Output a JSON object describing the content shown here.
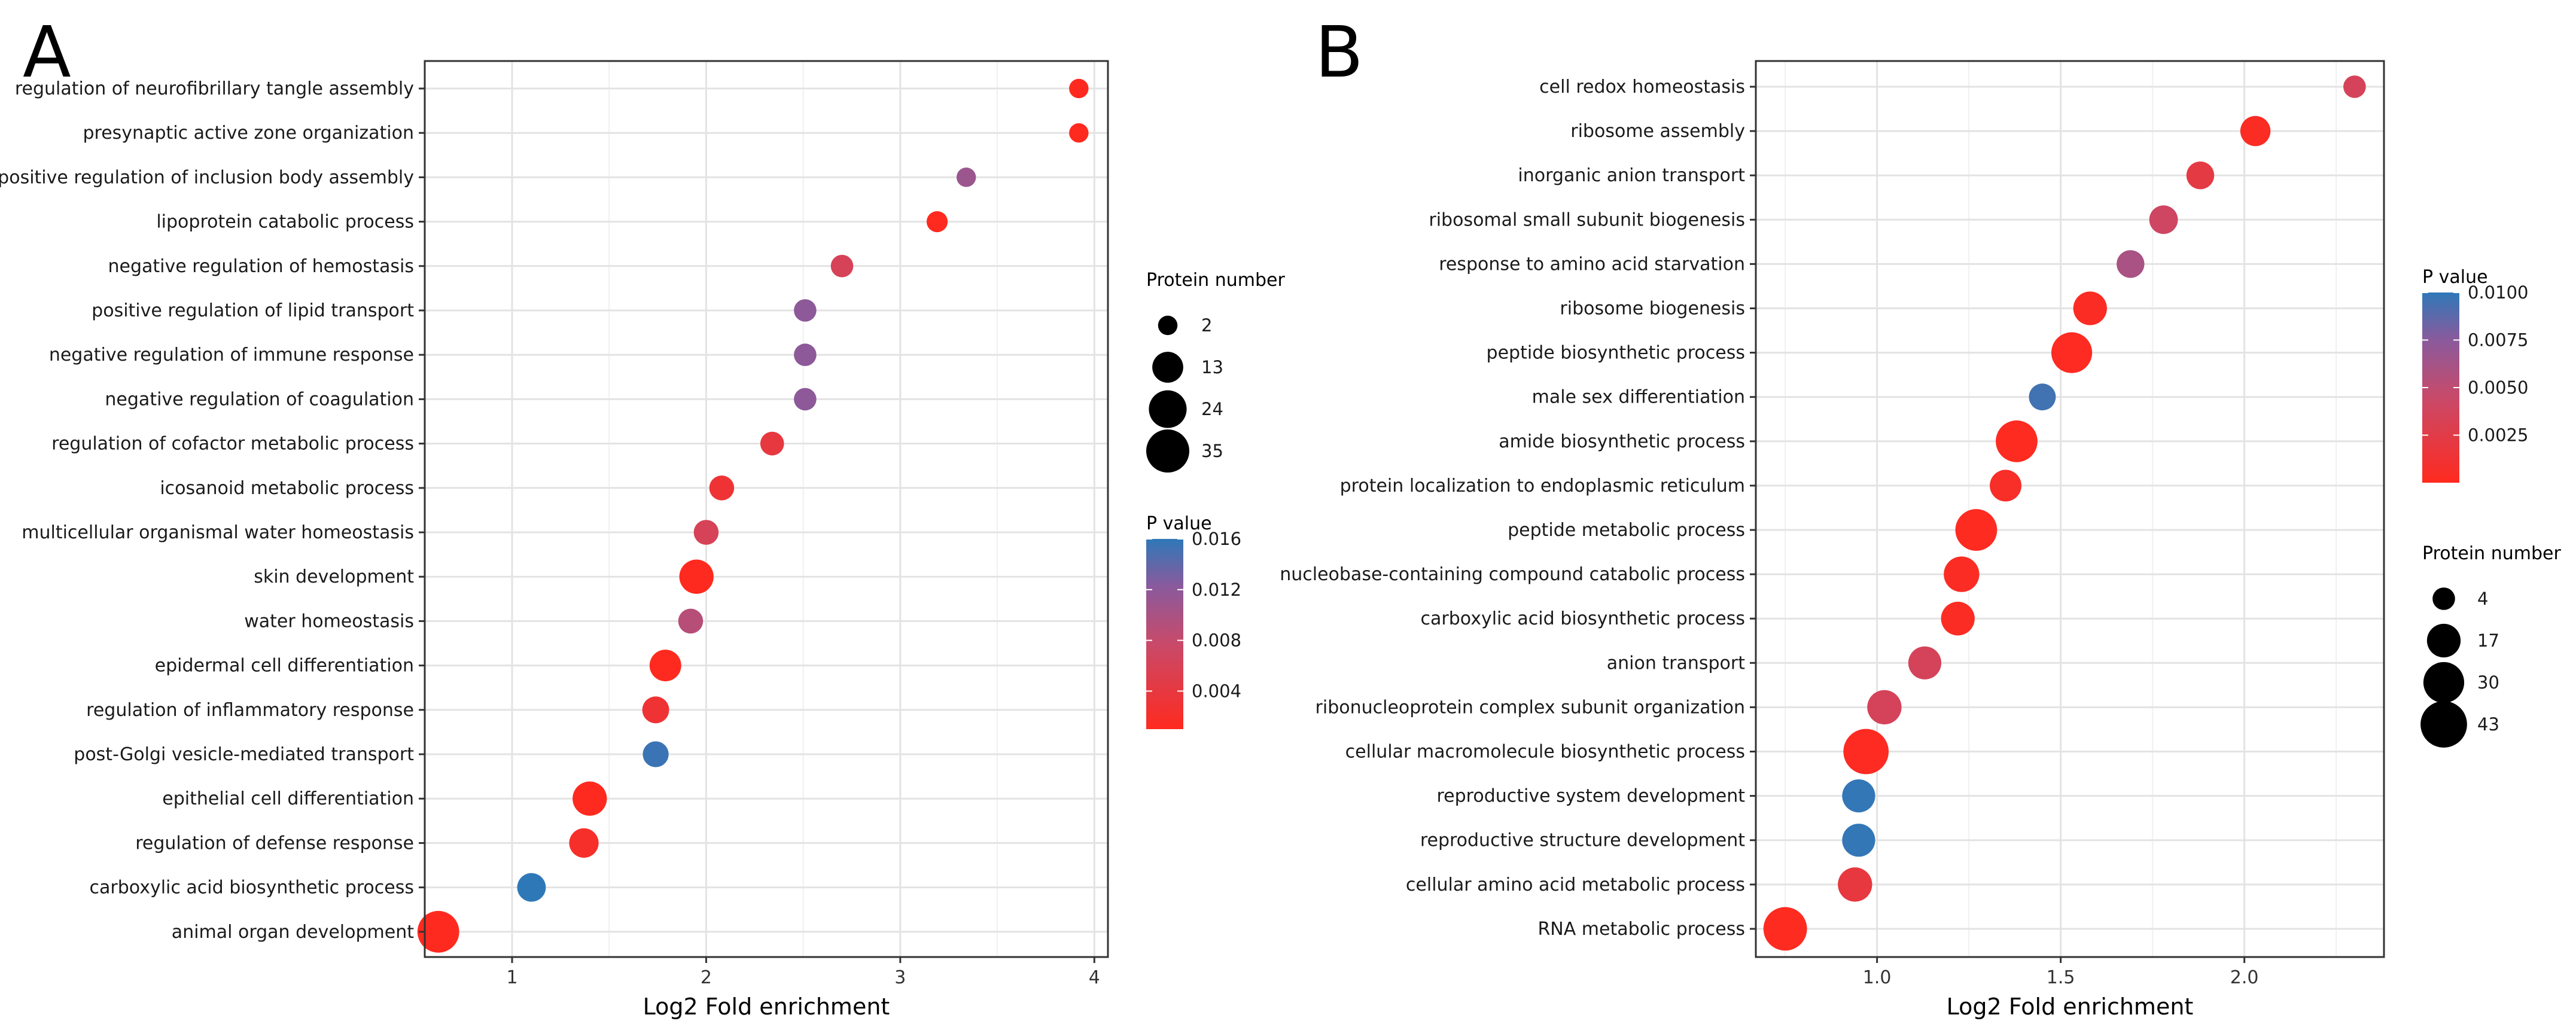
{
  "panels": [
    {
      "label": "A",
      "chart_data": {
        "type": "scatter",
        "xlabel": "Log2 Fold enrichment",
        "xlim": [
          0.55,
          4.07
        ],
        "xticks": [
          1,
          2,
          3,
          4
        ],
        "categories": [
          "regulation of neurofibrillary tangle assembly",
          "presynaptic active zone organization",
          "positive regulation of inclusion body assembly",
          "lipoprotein catabolic process",
          "negative regulation of hemostasis",
          "positive regulation of lipid transport",
          "negative regulation of immune response",
          "negative regulation of coagulation",
          "regulation of cofactor metabolic process",
          "icosanoid metabolic process",
          "multicellular organismal water homeostasis",
          "skin development",
          "water homeostasis",
          "epidermal cell differentiation",
          "regulation of inflammatory response",
          "post-Golgi vesicle-mediated transport",
          "epithelial cell differentiation",
          "regulation of defense response",
          "carboxylic acid biosynthetic process",
          "animal organ development"
        ],
        "x": [
          3.92,
          3.92,
          3.34,
          3.19,
          2.7,
          2.51,
          2.51,
          2.51,
          2.34,
          2.08,
          2.0,
          1.95,
          1.92,
          1.79,
          1.74,
          1.74,
          1.4,
          1.37,
          1.1,
          0.62
        ],
        "size": [
          2,
          2,
          2,
          3,
          4,
          4,
          4,
          4,
          5,
          6,
          6,
          18,
          6,
          14,
          8,
          7,
          18,
          11,
          10,
          32
        ],
        "pvalue": [
          0.0005,
          0.0005,
          0.011,
          0.0009,
          0.006,
          0.012,
          0.012,
          0.012,
          0.004,
          0.003,
          0.006,
          0.0004,
          0.009,
          0.0004,
          0.003,
          0.0155,
          0.0003,
          0.002,
          0.016,
          0.0002
        ],
        "legend_size": {
          "title": "Protein number",
          "values": [
            2,
            13,
            24,
            35
          ]
        },
        "legend_color": {
          "title": "P value",
          "range": [
            0.001,
            0.016
          ],
          "ticks": [
            0.004,
            0.008,
            0.012,
            0.016
          ],
          "tick_labels": [
            "0.004",
            "0.008",
            "0.012",
            "0.016"
          ],
          "low_color": "#ff2a1f",
          "high_color": "#2f78b8"
        },
        "legend_order": [
          "size",
          "color"
        ]
      }
    },
    {
      "label": "B",
      "chart_data": {
        "type": "scatter",
        "xlabel": "Log2 Fold enrichment",
        "xlim": [
          0.67,
          2.38
        ],
        "xticks": [
          1.0,
          1.5,
          2.0
        ],
        "tick_labels": [
          "1.0",
          "1.5",
          "2.0"
        ],
        "categories": [
          "cell redox homeostasis",
          "ribosome assembly",
          "inorganic anion transport",
          "ribosomal small subunit biogenesis",
          "response to amino acid starvation",
          "ribosome biogenesis",
          "peptide biosynthetic process",
          "male sex differentiation",
          "amide biosynthetic process",
          "protein localization to endoplasmic reticulum",
          "peptide metabolic process",
          "nucleobase-containing compound catabolic process",
          "carboxylic acid biosynthetic process",
          "anion transport",
          "ribonucleoprotein complex subunit organization",
          "cellular macromolecule biosynthetic process",
          "reproductive system development",
          "reproductive structure development",
          "cellular amino acid metabolic process",
          "RNA metabolic process"
        ],
        "x": [
          2.3,
          2.03,
          1.88,
          1.78,
          1.69,
          1.58,
          1.53,
          1.45,
          1.38,
          1.35,
          1.27,
          1.23,
          1.22,
          1.13,
          1.02,
          0.97,
          0.95,
          0.95,
          0.94,
          0.75
        ],
        "size": [
          4,
          12,
          9,
          10,
          9,
          17,
          30,
          8,
          32,
          14,
          32,
          20,
          17,
          16,
          18,
          40,
          16,
          16,
          18,
          36
        ],
        "pvalue": [
          0.0035,
          0.0003,
          0.0022,
          0.004,
          0.006,
          0.0003,
          0.0002,
          0.0095,
          0.0001,
          0.0006,
          0.0001,
          0.0003,
          0.0003,
          0.0035,
          0.0035,
          0.0002,
          0.0099,
          0.0099,
          0.002,
          0.0001
        ],
        "legend_size": {
          "title": "Protein number",
          "values": [
            4,
            17,
            30,
            43
          ]
        },
        "legend_color": {
          "title": "P value",
          "range": [
            0.0,
            0.01
          ],
          "ticks": [
            0.0025,
            0.005,
            0.0075,
            0.01
          ],
          "tick_labels": [
            "0.0025",
            "0.0050",
            "0.0075",
            "0.0100"
          ],
          "low_color": "#ff2a1f",
          "high_color": "#2f78b8"
        },
        "legend_order": [
          "color",
          "size"
        ]
      }
    }
  ]
}
